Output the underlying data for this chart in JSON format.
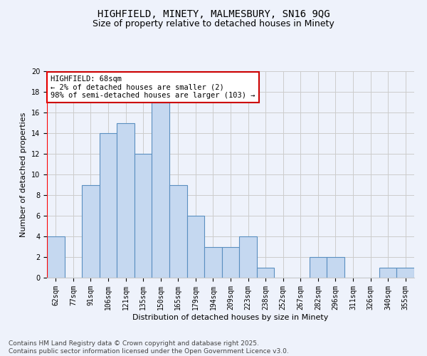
{
  "title": "HIGHFIELD, MINETY, MALMESBURY, SN16 9QG",
  "subtitle": "Size of property relative to detached houses in Minety",
  "xlabel": "Distribution of detached houses by size in Minety",
  "ylabel": "Number of detached properties",
  "categories": [
    "62sqm",
    "77sqm",
    "91sqm",
    "106sqm",
    "121sqm",
    "135sqm",
    "150sqm",
    "165sqm",
    "179sqm",
    "194sqm",
    "209sqm",
    "223sqm",
    "238sqm",
    "252sqm",
    "267sqm",
    "282sqm",
    "296sqm",
    "311sqm",
    "326sqm",
    "340sqm",
    "355sqm"
  ],
  "values": [
    4,
    0,
    9,
    14,
    15,
    12,
    17,
    9,
    6,
    3,
    3,
    4,
    1,
    0,
    0,
    2,
    2,
    0,
    0,
    1,
    1
  ],
  "bar_color": "#c5d8f0",
  "bar_edge_color": "#5a8fc0",
  "bar_width": 1.0,
  "annotation_text": "HIGHFIELD: 68sqm\n← 2% of detached houses are smaller (2)\n98% of semi-detached houses are larger (103) →",
  "annotation_box_color": "#ffffff",
  "annotation_box_edge_color": "#cc0000",
  "ylim": [
    0,
    20
  ],
  "yticks": [
    0,
    2,
    4,
    6,
    8,
    10,
    12,
    14,
    16,
    18,
    20
  ],
  "grid_color": "#cccccc",
  "background_color": "#eef2fb",
  "footer_text": "Contains HM Land Registry data © Crown copyright and database right 2025.\nContains public sector information licensed under the Open Government Licence v3.0.",
  "title_fontsize": 10,
  "subtitle_fontsize": 9,
  "axis_label_fontsize": 8,
  "tick_fontsize": 7,
  "annotation_fontsize": 7.5,
  "footer_fontsize": 6.5
}
